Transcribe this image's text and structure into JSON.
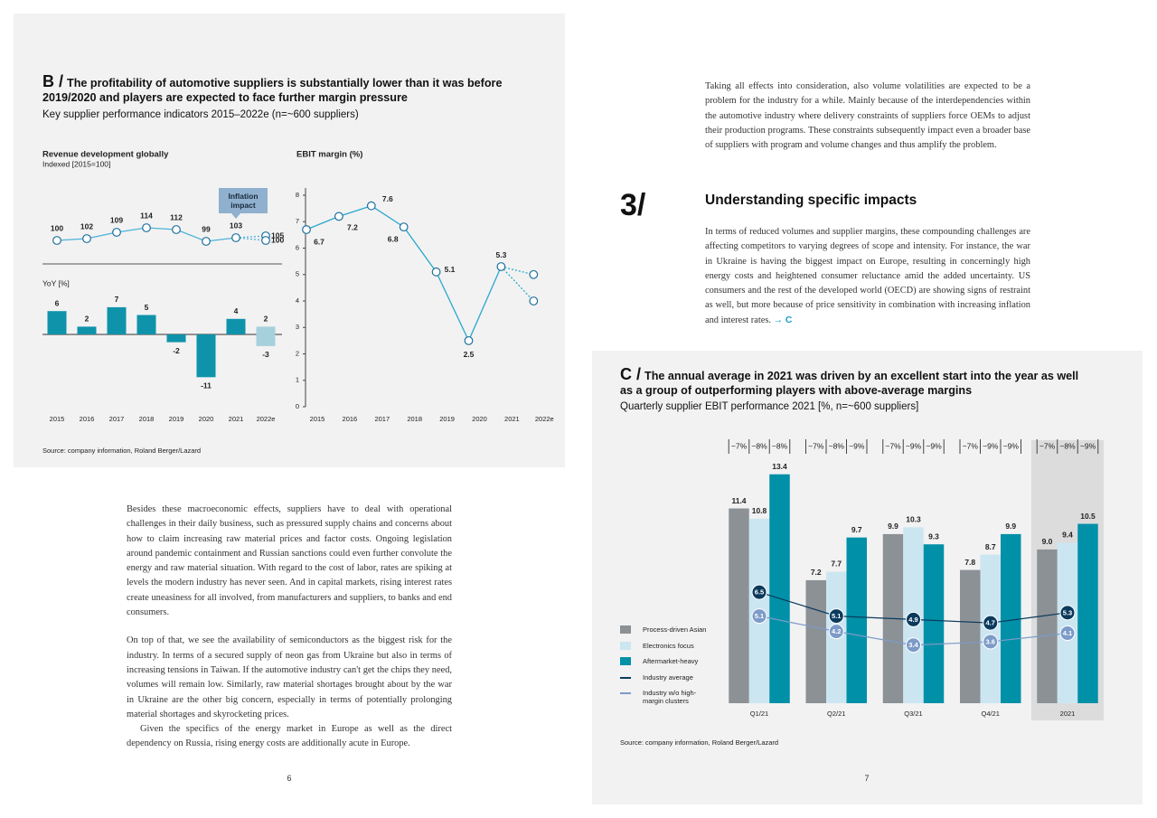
{
  "page_left": {
    "exhibit": {
      "letter": "B /",
      "title": "The profitability of automotive suppliers is substantially lower than it was before 2019/2020 and players are expected to face further margin pressure",
      "subtitle": "Key supplier performance indicators 2015–2022e (n=~600 suppliers)",
      "source": "Source: company information, Roland Berger/Lazard"
    },
    "paragraphs": [
      "Besides these macroeconomic effects, suppliers have to deal with operational challenges in their daily business, such as pressured supply chains and concerns about how to claim increasing raw material prices and factor costs. Ongoing legislation around pandemic containment and Russian sanctions could even further convolute the energy and raw material situation. With regard to the cost of labor, rates are spiking at levels the modern industry has never seen. And in capital markets, rising interest rates create uneasiness for all involved, from manufacturers and suppliers, to banks and end consumers.",
      "On top of that, we see the availability of semiconductors as the biggest risk for the industry. In terms of a secured supply of neon gas from Ukraine but also in terms of increasing tensions in Taiwan. If the automotive industry can't get the chips they need, volumes will remain low. Similarly, raw material shortages brought about by the war in Ukraine are the other big concern, especially in terms of potentially prolonging material shortages and skyrocketing prices.",
      "Given the specifics of the energy market in Europe as well as the direct dependency on Russia, rising energy costs are additionally acute in Europe."
    ],
    "page_number": "6"
  },
  "page_right": {
    "intro": "Taking all effects into consideration, also volume volatilities are expected to be a problem for the industry for a while. Mainly because of the interdependencies within the automotive industry where delivery constraints of suppliers force OEMs to adjust their production programs. These constraints subsequently impact even a broader base of suppliers with program and volume changes and thus amplify the problem.",
    "section_number": "3/",
    "heading": "Understanding specific impacts",
    "paragraph": "In terms of reduced volumes and supplier margins, these compounding challenges are affecting competitors to varying degrees of scope and intensity. For instance, the war in Ukraine is having the biggest impact on Europe, resulting in concerningly high energy costs and heightened consumer reluctance amid the added uncertainty. US consumers and the rest of the developed world (OECD) are showing signs of restraint as well, but more because of price sensitivity in combination with increasing inflation and interest rates.",
    "link": "→ C",
    "exhibit": {
      "letter": "C /",
      "title": "The annual average in 2021 was driven by an excellent start into the year as well as a group of outperforming players with above-average margins",
      "subtitle": "Quarterly supplier EBIT performance 2021 [%, n=~600 suppliers]",
      "source": "Source: company information, Roland Berger/Lazard"
    },
    "page_number": "7"
  },
  "chart_data": [
    {
      "type": "line",
      "title": "Revenue development globally",
      "subtitle": "Indexed [2015=100]",
      "annotation": "Inflation impact",
      "ylim": [
        90,
        130
      ],
      "series": [
        {
          "color": "#4fb3d9",
          "style": "solid",
          "values": [
            100,
            102,
            109,
            114,
            112,
            99,
            103,
            null
          ]
        },
        {
          "color": "#4fb3d9",
          "style": "dotted",
          "values": [
            null,
            null,
            null,
            null,
            null,
            null,
            103,
            105
          ]
        },
        {
          "color": "#4fb3d9",
          "style": "dotted",
          "values": [
            null,
            null,
            null,
            null,
            null,
            null,
            103,
            100
          ]
        }
      ]
    },
    {
      "type": "bar",
      "ylabel": "YoY [%]",
      "categories": [
        "2015",
        "2016",
        "2017",
        "2018",
        "2019",
        "2020",
        "2021",
        "2022e"
      ],
      "ylim": [
        -12,
        8
      ],
      "series": [
        {
          "color": "#0e93ab",
          "values": [
            6,
            2,
            7,
            5,
            -2,
            -11,
            4,
            null
          ]
        },
        {
          "color": "#a6d0dc",
          "values": [
            null,
            null,
            null,
            null,
            null,
            null,
            null,
            2
          ]
        },
        {
          "color": "#a6d0dc",
          "values": [
            null,
            null,
            null,
            null,
            null,
            null,
            null,
            -3
          ]
        }
      ]
    },
    {
      "type": "line",
      "title": "EBIT margin (%)",
      "categories": [
        "2015",
        "2016",
        "2017",
        "2018",
        "2019",
        "2020",
        "2021",
        "2022e"
      ],
      "ylim": [
        0,
        8
      ],
      "yticks": [
        0,
        1,
        2,
        3,
        4,
        5,
        6,
        7,
        8
      ],
      "series": [
        {
          "color": "#2aa8cc",
          "style": "solid",
          "values": [
            6.7,
            7.2,
            7.6,
            6.8,
            5.1,
            2.5,
            5.3,
            null
          ]
        },
        {
          "color": "#2aa8cc",
          "style": "dotted",
          "labels": false,
          "values": [
            null,
            null,
            null,
            null,
            null,
            null,
            5.3,
            5.0
          ]
        },
        {
          "color": "#2aa8cc",
          "style": "dotted",
          "labels": false,
          "values": [
            null,
            null,
            null,
            null,
            null,
            null,
            5.3,
            4.0
          ]
        }
      ]
    },
    {
      "type": "bar",
      "categories": [
        "Q1/21",
        "Q2/21",
        "Q3/21",
        "Q4/21",
        "2021"
      ],
      "ylim": [
        0,
        14
      ],
      "highlight_category": 4,
      "legend": "left",
      "group_labels": [
        [
          "~7%",
          "~8%",
          "~8%"
        ],
        [
          "~7%",
          "~8%",
          "~9%"
        ],
        [
          "~7%",
          "~9%",
          "~9%"
        ],
        [
          "~7%",
          "~9%",
          "~9%"
        ],
        [
          "~7%",
          "~8%",
          "~9%"
        ]
      ],
      "series": [
        {
          "name": "Process-driven Asian",
          "type": "bar",
          "color": "#8c9196",
          "values": [
            11.4,
            7.2,
            9.9,
            7.8,
            9.0
          ],
          "value_labels": [
            "11.4",
            "7.2",
            "9.9",
            "7.8",
            "9.0"
          ]
        },
        {
          "name": "Electronics focus",
          "type": "bar",
          "color": "#cce6f1",
          "values": [
            10.8,
            7.7,
            10.3,
            8.7,
            9.4
          ]
        },
        {
          "name": "Aftermarket-heavy",
          "type": "bar",
          "color": "#0090a8",
          "values": [
            13.4,
            9.7,
            9.3,
            9.9,
            10.5
          ]
        },
        {
          "name": "Industry average",
          "type": "line",
          "color": "#0b3a5c",
          "values": [
            6.5,
            5.1,
            4.9,
            4.7,
            5.3
          ]
        },
        {
          "name": "Industry w/o high-margin clusters",
          "type": "line",
          "color": "#7d9bc8",
          "values": [
            5.1,
            4.2,
            3.4,
            3.6,
            4.1
          ]
        }
      ]
    }
  ]
}
